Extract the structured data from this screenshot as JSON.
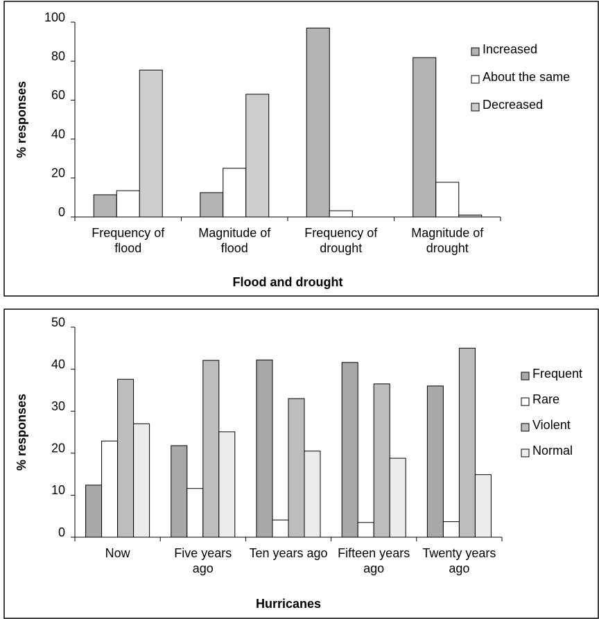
{
  "chart_data": [
    {
      "type": "bar",
      "xlabel": "Flood and drought",
      "ylabel": "% responses",
      "categories": [
        "Frequency of flood",
        "Magnitude of flood",
        "Frequency of drought",
        "Magnitude of drought"
      ],
      "series": [
        {
          "name": "Increased",
          "color": "#b4b4b4",
          "values": [
            11.4,
            12.5,
            97,
            81.8
          ]
        },
        {
          "name": "About the same",
          "color": "#ffffff",
          "values": [
            13.5,
            25,
            3.2,
            17.8
          ]
        },
        {
          "name": "Decreased",
          "color": "#cdcdcd",
          "values": [
            75.4,
            63,
            0,
            1
          ]
        }
      ],
      "ylim": [
        0,
        100
      ],
      "yticks": [
        0,
        20,
        40,
        60,
        80,
        100
      ],
      "legend": "right"
    },
    {
      "type": "bar",
      "xlabel": "Hurricanes",
      "ylabel": "% responses",
      "categories": [
        "Now",
        "Five years ago",
        "Ten years ago",
        "Fifteen years ago",
        "Twenty years ago"
      ],
      "series": [
        {
          "name": "Frequent",
          "color": "#a8a8a8",
          "values": [
            12.4,
            21.8,
            42.2,
            41.6,
            36
          ]
        },
        {
          "name": "Rare",
          "color": "#ffffff",
          "values": [
            22.9,
            11.6,
            4.1,
            3.5,
            3.7
          ]
        },
        {
          "name": "Violent",
          "color": "#bdbdbd",
          "values": [
            37.6,
            42.1,
            33,
            36.5,
            45
          ]
        },
        {
          "name": "Normal",
          "color": "#ececec",
          "values": [
            27,
            25.1,
            20.5,
            18.8,
            14.9
          ]
        }
      ],
      "ylim": [
        0,
        50
      ],
      "yticks": [
        0,
        10,
        20,
        30,
        40,
        50
      ],
      "legend": "right"
    }
  ]
}
